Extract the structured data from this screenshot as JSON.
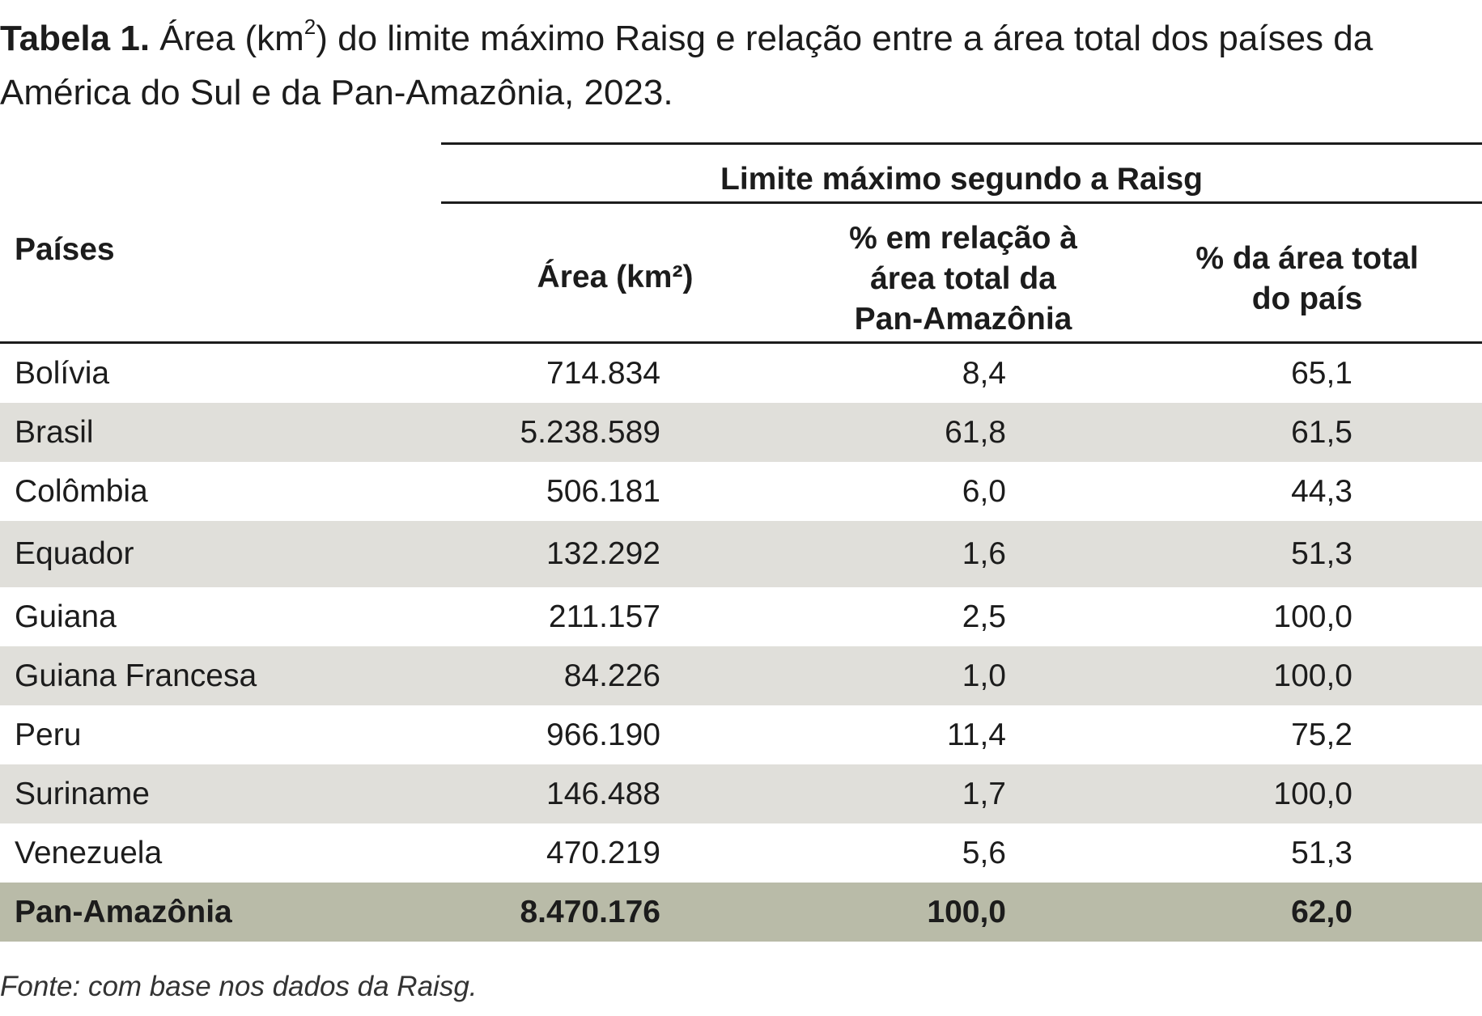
{
  "caption": {
    "label": "Tabela 1.",
    "text_before_sup": "Área (km",
    "sup": "2",
    "text_after_sup": ") do limite máximo Raisg e relação entre a área total dos países da América do Sul e da Pan-Amazônia, 2023."
  },
  "header": {
    "group_label": "Limite máximo segundo a Raisg",
    "country_col": "Países",
    "area_col": "Área (km²)",
    "pan_col_line1": "% em relação à",
    "pan_col_line2": "área total da",
    "pan_col_line3": "Pan-Amazônia",
    "country_pct_col_line1": "% da área total",
    "country_pct_col_line2": "do país"
  },
  "rows": [
    {
      "country": "Bolívia",
      "area": "714.834",
      "pan_pct": "8,4",
      "country_pct": "65,1"
    },
    {
      "country": "Brasil",
      "area": "5.238.589",
      "pan_pct": "61,8",
      "country_pct": "61,5"
    },
    {
      "country": "Colômbia",
      "area": "506.181",
      "pan_pct": "6,0",
      "country_pct": "44,3"
    },
    {
      "country": "Equador",
      "area": "132.292",
      "pan_pct": "1,6",
      "country_pct": "51,3"
    },
    {
      "country": "Guiana",
      "area": "211.157",
      "pan_pct": "2,5",
      "country_pct": "100,0"
    },
    {
      "country": "Guiana Francesa",
      "area": "84.226",
      "pan_pct": "1,0",
      "country_pct": "100,0"
    },
    {
      "country": "Peru",
      "area": "966.190",
      "pan_pct": "11,4",
      "country_pct": "75,2"
    },
    {
      "country": "Suriname",
      "area": "146.488",
      "pan_pct": "1,7",
      "country_pct": "100,0"
    },
    {
      "country": "Venezuela",
      "area": "470.219",
      "pan_pct": "5,6",
      "country_pct": "51,3"
    }
  ],
  "total": {
    "country": "Pan-Amazônia",
    "area": "8.470.176",
    "pan_pct": "100,0",
    "country_pct": "62,0"
  },
  "source": "Fonte: com base nos dados da Raisg.",
  "colors": {
    "shade_row": "#e0dfda",
    "total_row": "#b9bba8",
    "text": "#1c1c1c"
  }
}
